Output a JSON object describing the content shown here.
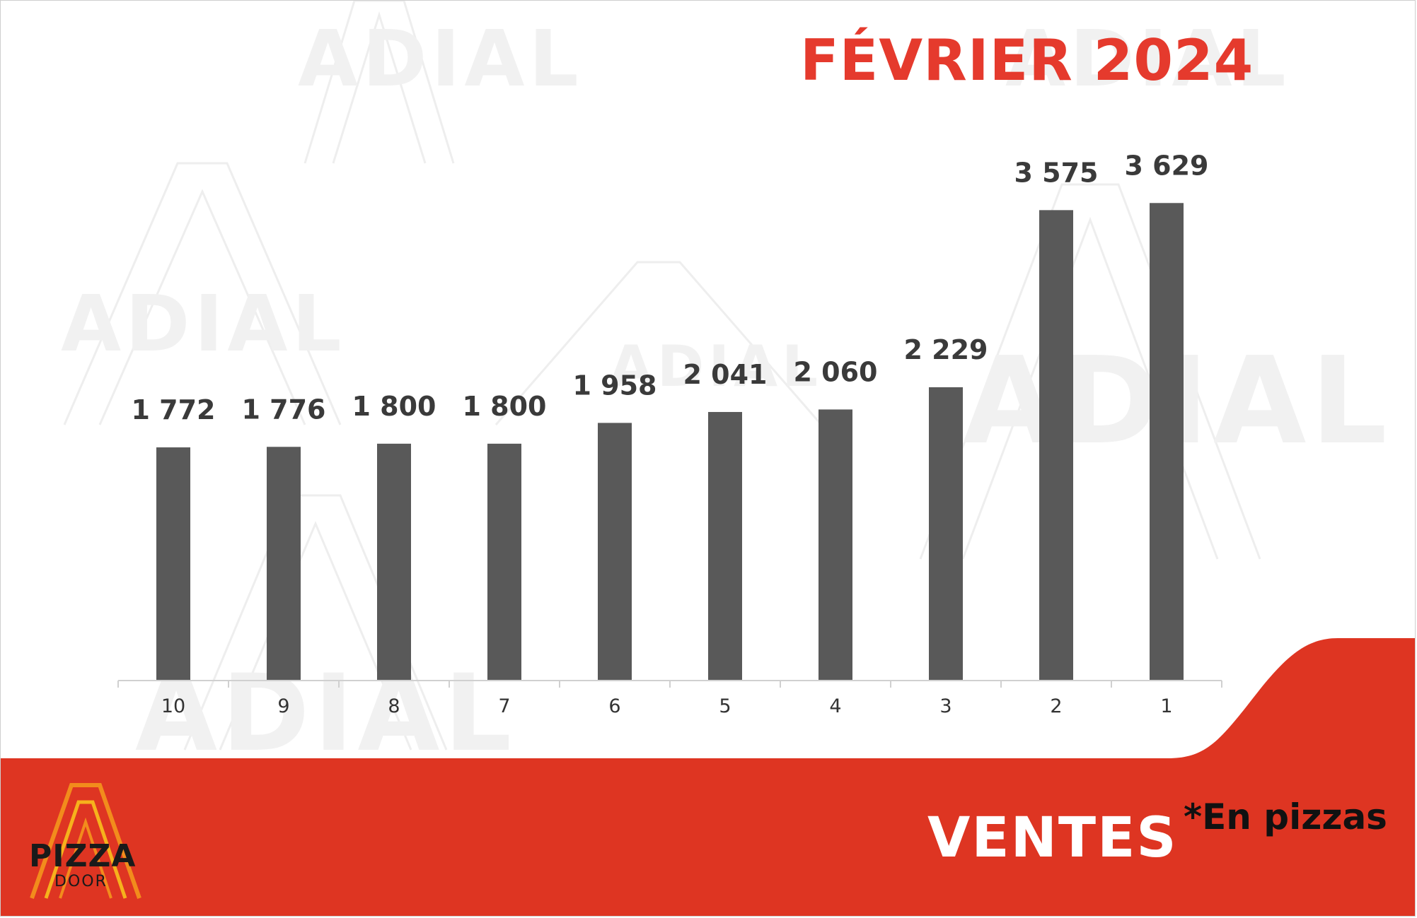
{
  "title": "FÉVRIER 2024",
  "footer": {
    "label": "VENTES",
    "note": "*En pizzas"
  },
  "logo": {
    "name": "PIZZA",
    "subname": "DOOR"
  },
  "watermark": "ADIAL",
  "colors": {
    "accent": "#e53a2d",
    "bar": "#595959",
    "footer_band": "#de3522"
  },
  "chart_data": {
    "type": "bar",
    "categories": [
      "10",
      "9",
      "8",
      "7",
      "6",
      "5",
      "4",
      "3",
      "2",
      "1"
    ],
    "values": [
      1772,
      1776,
      1800,
      1800,
      1958,
      2041,
      2060,
      2229,
      3575,
      3629
    ],
    "data_labels": [
      "1 772",
      "1 776",
      "1 800",
      "1 800",
      "1 958",
      "2 041",
      "2 060",
      "2 229",
      "3 575",
      "3 629"
    ],
    "title": "FÉVRIER 2024",
    "ylim": [
      0,
      4000
    ],
    "grid": false,
    "legend": "none"
  }
}
